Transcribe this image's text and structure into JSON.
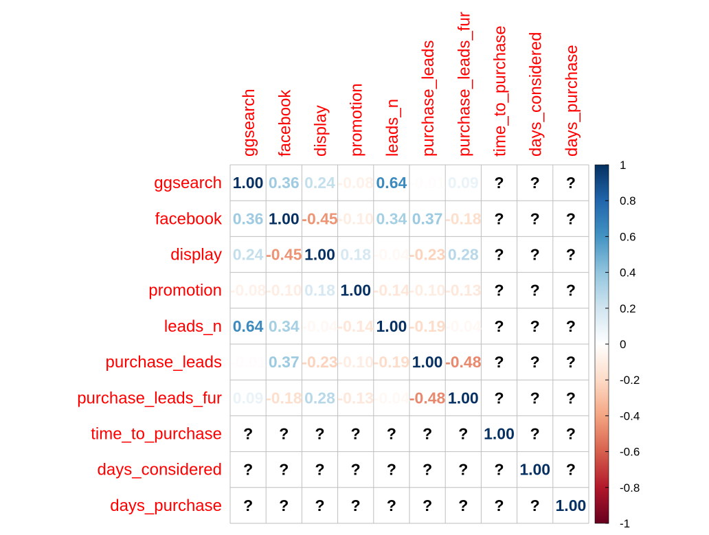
{
  "chart_data": {
    "type": "heatmap",
    "variables": [
      "ggsearch",
      "facebook",
      "display",
      "promotion",
      "leads_n",
      "purchase_leads",
      "purchase_leads_fur",
      "time_to_purchase",
      "days_considered",
      "days_purchase"
    ],
    "missing_label": "?",
    "matrix": [
      [
        1.0,
        0.36,
        0.24,
        -0.08,
        0.64,
        -0.01,
        0.09,
        null,
        null,
        null
      ],
      [
        0.36,
        1.0,
        -0.45,
        -0.1,
        0.34,
        0.37,
        -0.18,
        null,
        null,
        null
      ],
      [
        0.24,
        -0.45,
        1.0,
        0.18,
        -0.04,
        -0.23,
        0.28,
        null,
        null,
        null
      ],
      [
        -0.08,
        -0.1,
        0.18,
        1.0,
        -0.14,
        -0.1,
        -0.13,
        null,
        null,
        null
      ],
      [
        0.64,
        0.34,
        -0.04,
        -0.14,
        1.0,
        -0.19,
        -0.04,
        null,
        null,
        null
      ],
      [
        -0.01,
        0.37,
        -0.23,
        -0.1,
        -0.19,
        1.0,
        -0.48,
        null,
        null,
        null
      ],
      [
        0.09,
        -0.18,
        0.28,
        -0.13,
        -0.04,
        -0.48,
        1.0,
        null,
        null,
        null
      ],
      [
        null,
        null,
        null,
        null,
        null,
        null,
        null,
        1.0,
        null,
        null
      ],
      [
        null,
        null,
        null,
        null,
        null,
        null,
        null,
        null,
        1.0,
        null
      ],
      [
        null,
        null,
        null,
        null,
        null,
        null,
        null,
        null,
        null,
        1.0
      ]
    ],
    "colorbar": {
      "range": [
        -1,
        1
      ],
      "ticks": [
        "1",
        "0.8",
        "0.6",
        "0.4",
        "0.2",
        "0",
        "-0.2",
        "-0.4",
        "-0.6",
        "-0.8",
        "-1"
      ],
      "colors": [
        "#67001F",
        "#B2182B",
        "#D6604D",
        "#F4A582",
        "#FDDBC7",
        "#FFFFFF",
        "#D1E5F0",
        "#92C5DE",
        "#4393C3",
        "#2166AC",
        "#053061"
      ]
    },
    "label_color": "#FF0000",
    "grid_color": "#BEBEBE"
  }
}
